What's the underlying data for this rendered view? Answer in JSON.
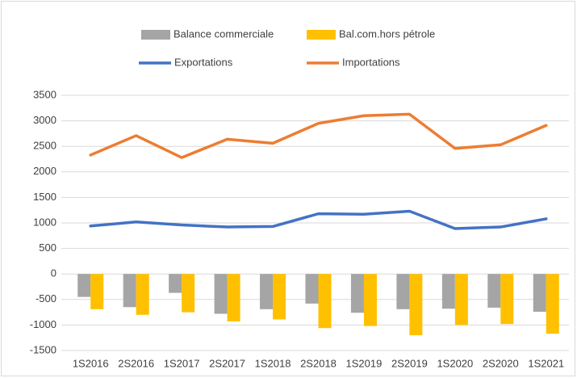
{
  "chart_data": {
    "type": "combo",
    "categories": [
      "1S2016",
      "2S2016",
      "1S2017",
      "2S2017",
      "1S2018",
      "2S2018",
      "1S2019",
      "2S2019",
      "1S2020",
      "2S2020",
      "1S2021"
    ],
    "series": [
      {
        "name": "Balance commerciale",
        "type": "bar",
        "color": "#a5a5a5",
        "values": [
          -450,
          -650,
          -370,
          -780,
          -690,
          -580,
          -760,
          -690,
          -680,
          -660,
          -740
        ]
      },
      {
        "name": "Bal.com.hors pétrole",
        "type": "bar",
        "color": "#ffc000",
        "values": [
          -690,
          -800,
          -750,
          -930,
          -890,
          -1060,
          -1020,
          -1200,
          -1000,
          -980,
          -1170
        ]
      },
      {
        "name": "Exportations",
        "type": "line",
        "color": "#4472c4",
        "values": [
          940,
          1020,
          960,
          920,
          930,
          1180,
          1170,
          1230,
          890,
          920,
          1080
        ]
      },
      {
        "name": "Importations",
        "type": "line",
        "color": "#ed7d31",
        "values": [
          2330,
          2710,
          2280,
          2640,
          2560,
          2950,
          3100,
          3130,
          2460,
          2530,
          2910
        ]
      }
    ],
    "ylim": [
      -1500,
      3500
    ],
    "yticks": [
      -1500,
      -1000,
      -500,
      0,
      500,
      1000,
      1500,
      2000,
      2500,
      3000,
      3500
    ],
    "grid": true,
    "legend": "top"
  }
}
